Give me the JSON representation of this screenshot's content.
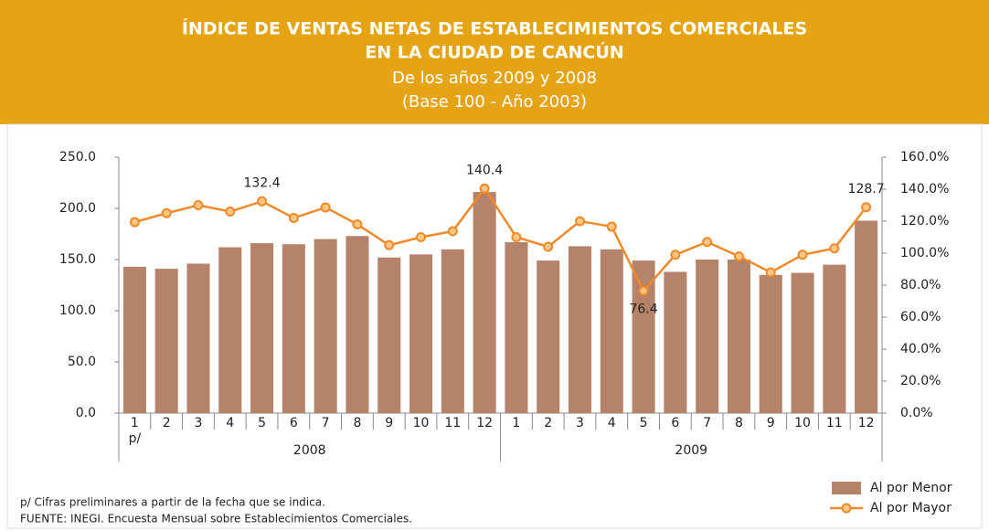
{
  "chart_data": {
    "type": "bar_line",
    "title": [
      "ÍNDICE DE VENTAS NETAS DE ESTABLECIMIENTOS COMERCIALES",
      "EN LA CIUDAD DE CANCÚN"
    ],
    "subtitle": [
      "De los años 2009 y 2008",
      "(Base 100 - Año 2003)"
    ],
    "categories": [
      "1",
      "2",
      "3",
      "4",
      "5",
      "6",
      "7",
      "8",
      "9",
      "10",
      "11",
      "12",
      "1",
      "2",
      "3",
      "4",
      "5",
      "6",
      "7",
      "8",
      "9",
      "10",
      "11",
      "12"
    ],
    "category_note": "p/",
    "groups": [
      "2008",
      "2009"
    ],
    "series": [
      {
        "name": "Al por Menor",
        "type": "bar",
        "color": "#b5836a",
        "values": [
          143,
          141,
          146,
          162,
          166,
          165,
          170,
          173,
          152,
          155,
          160,
          216,
          167,
          149,
          163,
          160,
          149,
          138,
          150,
          150,
          135,
          137,
          145,
          188
        ]
      },
      {
        "name": "Al por Mayor",
        "type": "line",
        "axis": "y2",
        "color": "#f0892a",
        "values": [
          119.4,
          125,
          130,
          126,
          132.4,
          122,
          128.6,
          118,
          105,
          110,
          113.7,
          140.4,
          110,
          104,
          120,
          116.6,
          76.4,
          99,
          107,
          98,
          88,
          99,
          103,
          128.7
        ],
        "value_labels": [
          null,
          null,
          null,
          null,
          "132.4",
          null,
          null,
          null,
          null,
          null,
          null,
          "140.4",
          null,
          null,
          null,
          null,
          "76.4",
          null,
          null,
          null,
          null,
          null,
          null,
          "128.7"
        ]
      }
    ],
    "ylim": [
      0,
      250
    ],
    "yticks": [
      {
        "value": 0,
        "label": "0.0"
      },
      {
        "value": 50,
        "label": "50.0"
      },
      {
        "value": 100,
        "label": "100.0"
      },
      {
        "value": 150,
        "label": "150.0"
      },
      {
        "value": 200,
        "label": "200.0"
      },
      {
        "value": 250,
        "label": "250.0"
      }
    ],
    "y2lim": [
      0,
      160
    ],
    "y2ticks": [
      {
        "value": 0,
        "label": "0.0%"
      },
      {
        "value": 20,
        "label": "20.0%"
      },
      {
        "value": 40,
        "label": "40.0%"
      },
      {
        "value": 60,
        "label": "60.0%"
      },
      {
        "value": 80,
        "label": "80.0%"
      },
      {
        "value": 100,
        "label": "100.0%"
      },
      {
        "value": 120,
        "label": "120.0%"
      },
      {
        "value": 140,
        "label": "140.0%"
      },
      {
        "value": 160,
        "label": "160.0%"
      }
    ],
    "footnotes": [
      "p/ Cifras preliminares a partir de la fecha que se indica.",
      "FUENTE: INEGI. Encuesta Mensual sobre Establecimientos Comerciales."
    ],
    "header_color": "#e5a416"
  }
}
